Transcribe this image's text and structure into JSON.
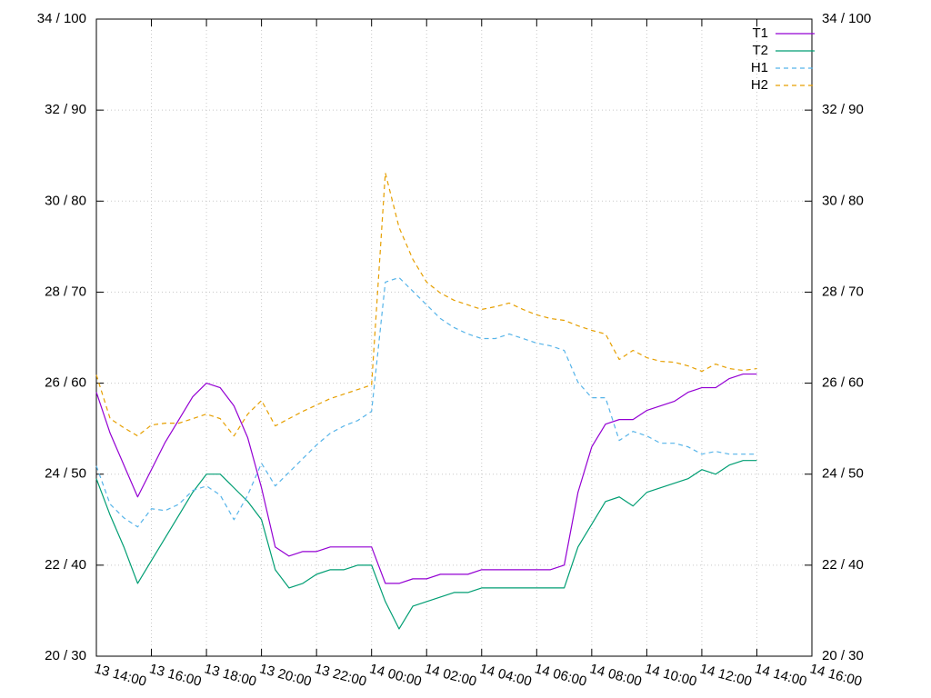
{
  "chart_data": {
    "type": "line",
    "x": [
      "13 14:00",
      "13 14:30",
      "13 15:00",
      "13 15:30",
      "13 16:00",
      "13 16:30",
      "13 17:00",
      "13 17:30",
      "13 18:00",
      "13 18:30",
      "13 19:00",
      "13 19:30",
      "13 20:00",
      "13 20:30",
      "13 21:00",
      "13 21:30",
      "13 22:00",
      "13 22:30",
      "13 23:00",
      "13 23:30",
      "14 00:00",
      "14 00:30",
      "14 01:00",
      "14 01:30",
      "14 02:00",
      "14 02:30",
      "14 03:00",
      "14 03:30",
      "14 04:00",
      "14 04:30",
      "14 05:00",
      "14 05:30",
      "14 06:00",
      "14 06:30",
      "14 07:00",
      "14 07:30",
      "14 08:00",
      "14 08:30",
      "14 09:00",
      "14 09:30",
      "14 10:00",
      "14 10:30",
      "14 11:00",
      "14 11:30",
      "14 12:00",
      "14 12:30",
      "14 13:00",
      "14 13:30",
      "14 14:00"
    ],
    "series": [
      {
        "name": "T1",
        "color": "#9400d3",
        "dashed": false,
        "values": [
          25.8,
          24.9,
          24.2,
          23.5,
          24.1,
          24.7,
          25.2,
          25.7,
          26.0,
          25.9,
          25.5,
          24.8,
          23.7,
          22.4,
          22.2,
          22.3,
          22.3,
          22.4,
          22.4,
          22.4,
          22.4,
          21.6,
          21.6,
          21.7,
          21.7,
          21.8,
          21.8,
          21.8,
          21.9,
          21.9,
          21.9,
          21.9,
          21.9,
          21.9,
          22.0,
          23.6,
          24.6,
          25.1,
          25.2,
          25.2,
          25.4,
          25.5,
          25.6,
          25.8,
          25.9,
          25.9,
          26.1,
          26.2,
          26.2
        ]
      },
      {
        "name": "T2",
        "color": "#009e73",
        "dashed": false,
        "values": [
          23.9,
          23.1,
          22.4,
          21.6,
          22.1,
          22.6,
          23.1,
          23.6,
          24.0,
          24.0,
          23.7,
          23.4,
          23.0,
          21.9,
          21.5,
          21.6,
          21.8,
          21.9,
          21.9,
          22.0,
          22.0,
          21.2,
          20.6,
          21.1,
          21.2,
          21.3,
          21.4,
          21.4,
          21.5,
          21.5,
          21.5,
          21.5,
          21.5,
          21.5,
          21.5,
          22.4,
          22.9,
          23.4,
          23.5,
          23.3,
          23.6,
          23.7,
          23.8,
          23.9,
          24.1,
          24.0,
          24.2,
          24.3,
          24.3
        ]
      },
      {
        "name": "H1",
        "color": "#56b4e9",
        "dashed": true,
        "axis": "y2",
        "values": [
          50.9,
          46.7,
          45.2,
          44.2,
          46.2,
          46.0,
          46.7,
          48.2,
          48.7,
          47.7,
          45.0,
          47.7,
          51.2,
          48.7,
          50.2,
          51.7,
          53.2,
          54.5,
          55.3,
          55.9,
          56.9,
          71.1,
          71.6,
          70.1,
          68.6,
          67.1,
          66.1,
          65.4,
          64.9,
          64.9,
          65.4,
          64.9,
          64.4,
          64.1,
          63.6,
          60.1,
          58.4,
          58.4,
          53.7,
          54.7,
          54.2,
          53.4,
          53.4,
          53.0,
          52.2,
          52.5,
          52.2,
          52.2,
          52.2
        ]
      },
      {
        "name": "H2",
        "color": "#e69f00",
        "dashed": true,
        "axis": "y2",
        "values": [
          60.9,
          56.1,
          55.1,
          54.2,
          55.4,
          55.6,
          55.6,
          56.1,
          56.6,
          56.1,
          54.2,
          56.6,
          58.1,
          55.3,
          56.1,
          56.9,
          57.6,
          58.3,
          58.8,
          59.3,
          59.8,
          83.1,
          77.1,
          73.6,
          71.1,
          69.9,
          69.1,
          68.6,
          68.1,
          68.4,
          68.8,
          68.1,
          67.5,
          67.1,
          66.9,
          66.3,
          65.8,
          65.4,
          62.6,
          63.6,
          62.8,
          62.4,
          62.3,
          61.9,
          61.3,
          62.1,
          61.6,
          61.4,
          61.6
        ]
      }
    ],
    "xlim": [
      "13 14:00",
      "14 16:00"
    ],
    "xticks": [
      "13 14:00",
      "13 16:00",
      "13 18:00",
      "13 20:00",
      "13 22:00",
      "14 00:00",
      "14 02:00",
      "14 04:00",
      "14 06:00",
      "14 08:00",
      "14 10:00",
      "14 12:00",
      "14 14:00",
      "14 16:00"
    ],
    "ylim": [
      20,
      34
    ],
    "yticks": [
      {
        "value": 20,
        "label": "20 / 30"
      },
      {
        "value": 22,
        "label": "22 / 40"
      },
      {
        "value": 24,
        "label": "24 / 50"
      },
      {
        "value": 26,
        "label": "26 / 60"
      },
      {
        "value": 28,
        "label": "28 / 70"
      },
      {
        "value": 30,
        "label": "30 / 80"
      },
      {
        "value": 32,
        "label": "32 / 90"
      },
      {
        "value": 34,
        "label": "34 / 100"
      }
    ],
    "y2lim": [
      30,
      100
    ],
    "y2ticks": [
      {
        "value": 30,
        "label": "20 / 30"
      },
      {
        "value": 40,
        "label": "22 / 40"
      },
      {
        "value": 50,
        "label": "24 / 50"
      },
      {
        "value": 60,
        "label": "26 / 60"
      },
      {
        "value": 70,
        "label": "28 / 70"
      },
      {
        "value": 80,
        "label": "30 / 80"
      },
      {
        "value": 90,
        "label": "32 / 90"
      },
      {
        "value": 100,
        "label": "34 / 100"
      }
    ],
    "grid": true,
    "legend": "top-right"
  }
}
